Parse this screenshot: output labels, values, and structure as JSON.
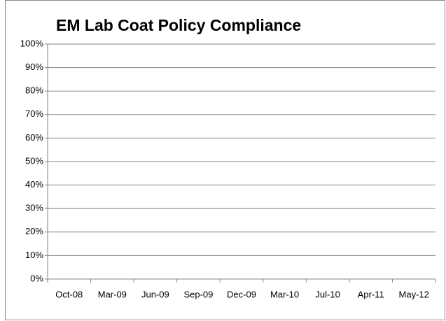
{
  "chart_data": {
    "type": "line",
    "title": "EM Lab Coat Policy Compliance",
    "categories": [
      "Oct-08",
      "Mar-09",
      "Jun-09",
      "Sep-09",
      "Dec-09",
      "Mar-10",
      "Jul-10",
      "Apr-11",
      "May-12"
    ],
    "ylim": [
      0,
      100
    ],
    "yticks": [
      {
        "value": 0,
        "label": "0%"
      },
      {
        "value": 10,
        "label": "10%"
      },
      {
        "value": 20,
        "label": "20%"
      },
      {
        "value": 30,
        "label": "30%"
      },
      {
        "value": 40,
        "label": "40%"
      },
      {
        "value": 50,
        "label": "50%"
      },
      {
        "value": 60,
        "label": "60%"
      },
      {
        "value": 70,
        "label": "70%"
      },
      {
        "value": 80,
        "label": "80%"
      },
      {
        "value": 90,
        "label": "90%"
      },
      {
        "value": 100,
        "label": "100%"
      }
    ],
    "grid": true
  }
}
